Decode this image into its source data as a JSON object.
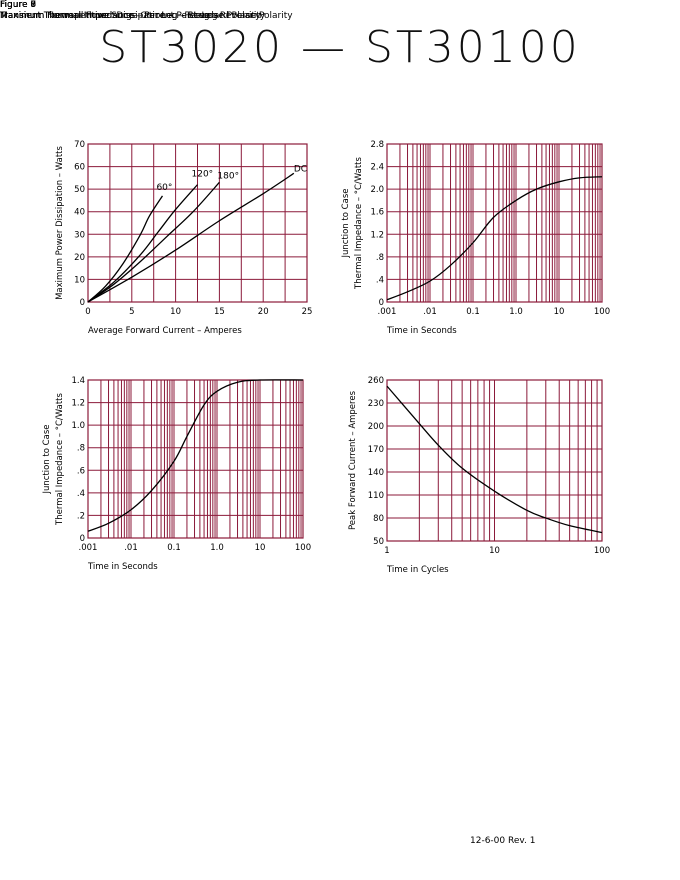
{
  "page": {
    "title": "ST3020  —  ST30100",
    "footer": "12-6-00   Rev. 1"
  },
  "colors": {
    "grid": "#8b1a3a",
    "curve": "#000000",
    "text": "#000000"
  },
  "chart_data": [
    {
      "id": "fig6",
      "figure": "Figure 6",
      "title": "Maximum Forward Power Dissipation – Per Leg – Reverse Polarity",
      "type": "line",
      "x_scale": "linear",
      "y_scale": "linear",
      "xlim": [
        0,
        25
      ],
      "ylim": [
        0,
        70
      ],
      "xticks": [
        0,
        5,
        10,
        15,
        20,
        25
      ],
      "xtick_labels": [
        "0",
        "5",
        "10",
        "15",
        "20",
        "25"
      ],
      "yticks": [
        0,
        10,
        20,
        30,
        40,
        50,
        60,
        70
      ],
      "ytick_labels": [
        "0",
        "10",
        "20",
        "30",
        "40",
        "50",
        "60",
        "70"
      ],
      "grid_x": [
        0,
        2.5,
        5,
        7.5,
        10,
        12.5,
        15,
        17.5,
        20,
        22.5,
        25
      ],
      "grid_y": [
        0,
        10,
        20,
        30,
        40,
        50,
        60,
        70
      ],
      "xlabel": "Average Forward Current – Amperes",
      "ylabel": [
        "Maximum Power Dissipation – Watts"
      ],
      "series": [
        {
          "name": "60°",
          "x": [
            0,
            2,
            4,
            6,
            7,
            8.5
          ],
          "y": [
            0,
            7,
            17,
            30,
            38,
            47
          ]
        },
        {
          "name": "120°",
          "x": [
            0,
            3,
            6,
            8,
            10,
            12.5
          ],
          "y": [
            0,
            9,
            21,
            31,
            41,
            52
          ]
        },
        {
          "name": "180°",
          "x": [
            0,
            3,
            6,
            9,
            12,
            15
          ],
          "y": [
            0,
            8,
            18,
            29,
            40,
            53
          ]
        },
        {
          "name": "DC",
          "x": [
            0,
            5,
            10,
            15,
            20,
            23.5
          ],
          "y": [
            0,
            11,
            23,
            36,
            48,
            57
          ]
        }
      ]
    },
    {
      "id": "fig8",
      "figure": "Figure 8",
      "title": "Transient Thermal Impedance – Per Leg – Reverse Polarity",
      "type": "line",
      "x_scale": "log",
      "y_scale": "linear",
      "xlim": [
        0.001,
        100
      ],
      "ylim": [
        0,
        2.8
      ],
      "xticks": [
        0.001,
        0.01,
        0.1,
        1,
        10,
        100
      ],
      "xtick_labels": [
        ".001",
        ".01",
        "0.1",
        "1.0",
        "10",
        "100"
      ],
      "yticks": [
        0,
        0.4,
        0.8,
        1.2,
        1.6,
        2.0,
        2.4,
        2.8
      ],
      "ytick_labels": [
        "0",
        ".4",
        ".8",
        "1.2",
        "1.6",
        "2.0",
        "2.4",
        "2.8"
      ],
      "grid_y": [
        0,
        0.4,
        0.8,
        1.2,
        1.6,
        2.0,
        2.4,
        2.8
      ],
      "xlabel": "Time in Seconds",
      "ylabel": [
        "Junction to Case",
        "Thermal Impedance – °C/Watts"
      ],
      "series": [
        {
          "name": "",
          "x": [
            0.001,
            0.003,
            0.01,
            0.03,
            0.1,
            0.3,
            1,
            3,
            10,
            30,
            100
          ],
          "y": [
            0.04,
            0.18,
            0.37,
            0.65,
            1.05,
            1.5,
            1.8,
            2.0,
            2.13,
            2.2,
            2.22
          ]
        }
      ]
    },
    {
      "id": "fig7",
      "figure": "Figure 7",
      "title": "Transient Thermal Impedance – Per Leg – Standard Polarity",
      "type": "line",
      "x_scale": "log",
      "y_scale": "linear",
      "xlim": [
        0.001,
        100
      ],
      "ylim": [
        0,
        1.4
      ],
      "xticks": [
        0.001,
        0.01,
        0.1,
        1,
        10,
        100
      ],
      "xtick_labels": [
        ".001",
        ".01",
        "0.1",
        "1.0",
        "10",
        "100"
      ],
      "yticks": [
        0,
        0.2,
        0.4,
        0.6,
        0.8,
        1.0,
        1.2,
        1.4
      ],
      "ytick_labels": [
        "0",
        ".2",
        ".4",
        ".6",
        ".8",
        "1.0",
        "1.2",
        "1.4"
      ],
      "grid_y": [
        0,
        0.2,
        0.4,
        0.6,
        0.8,
        1.0,
        1.2,
        1.4
      ],
      "xlabel": "Time in Seconds",
      "ylabel": [
        "Junction to Case",
        "Thermal Impedance – °C/Watts"
      ],
      "series": [
        {
          "name": "",
          "x": [
            0.001,
            0.003,
            0.01,
            0.03,
            0.1,
            0.2,
            0.5,
            1,
            3,
            10,
            100
          ],
          "y": [
            0.06,
            0.13,
            0.25,
            0.42,
            0.68,
            0.9,
            1.18,
            1.3,
            1.38,
            1.4,
            1.4
          ]
        }
      ]
    },
    {
      "id": "fig9",
      "figure": "Figure 9",
      "title": "Maximum Nonrepetitive Surge Current – Per Leg",
      "type": "line",
      "x_scale": "log",
      "y_scale": "linear",
      "xlim": [
        1,
        100
      ],
      "ylim": [
        50,
        260
      ],
      "xticks": [
        1,
        10,
        100
      ],
      "xtick_labels": [
        "1",
        "10",
        "100"
      ],
      "yticks": [
        50,
        80,
        110,
        140,
        170,
        200,
        230,
        260
      ],
      "ytick_labels": [
        "50",
        "80",
        "110",
        "140",
        "170",
        "200",
        "230",
        "260"
      ],
      "grid_y": [
        50,
        80,
        110,
        140,
        170,
        200,
        230,
        260
      ],
      "xlabel": "Time in Cycles",
      "ylabel": [
        "Peak Forward Current – Amperes"
      ],
      "series": [
        {
          "name": "",
          "x": [
            1,
            2,
            3,
            5,
            10,
            20,
            30,
            50,
            100
          ],
          "y": [
            252,
            203,
            175,
            145,
            115,
            90,
            80,
            70,
            61
          ]
        }
      ]
    }
  ]
}
